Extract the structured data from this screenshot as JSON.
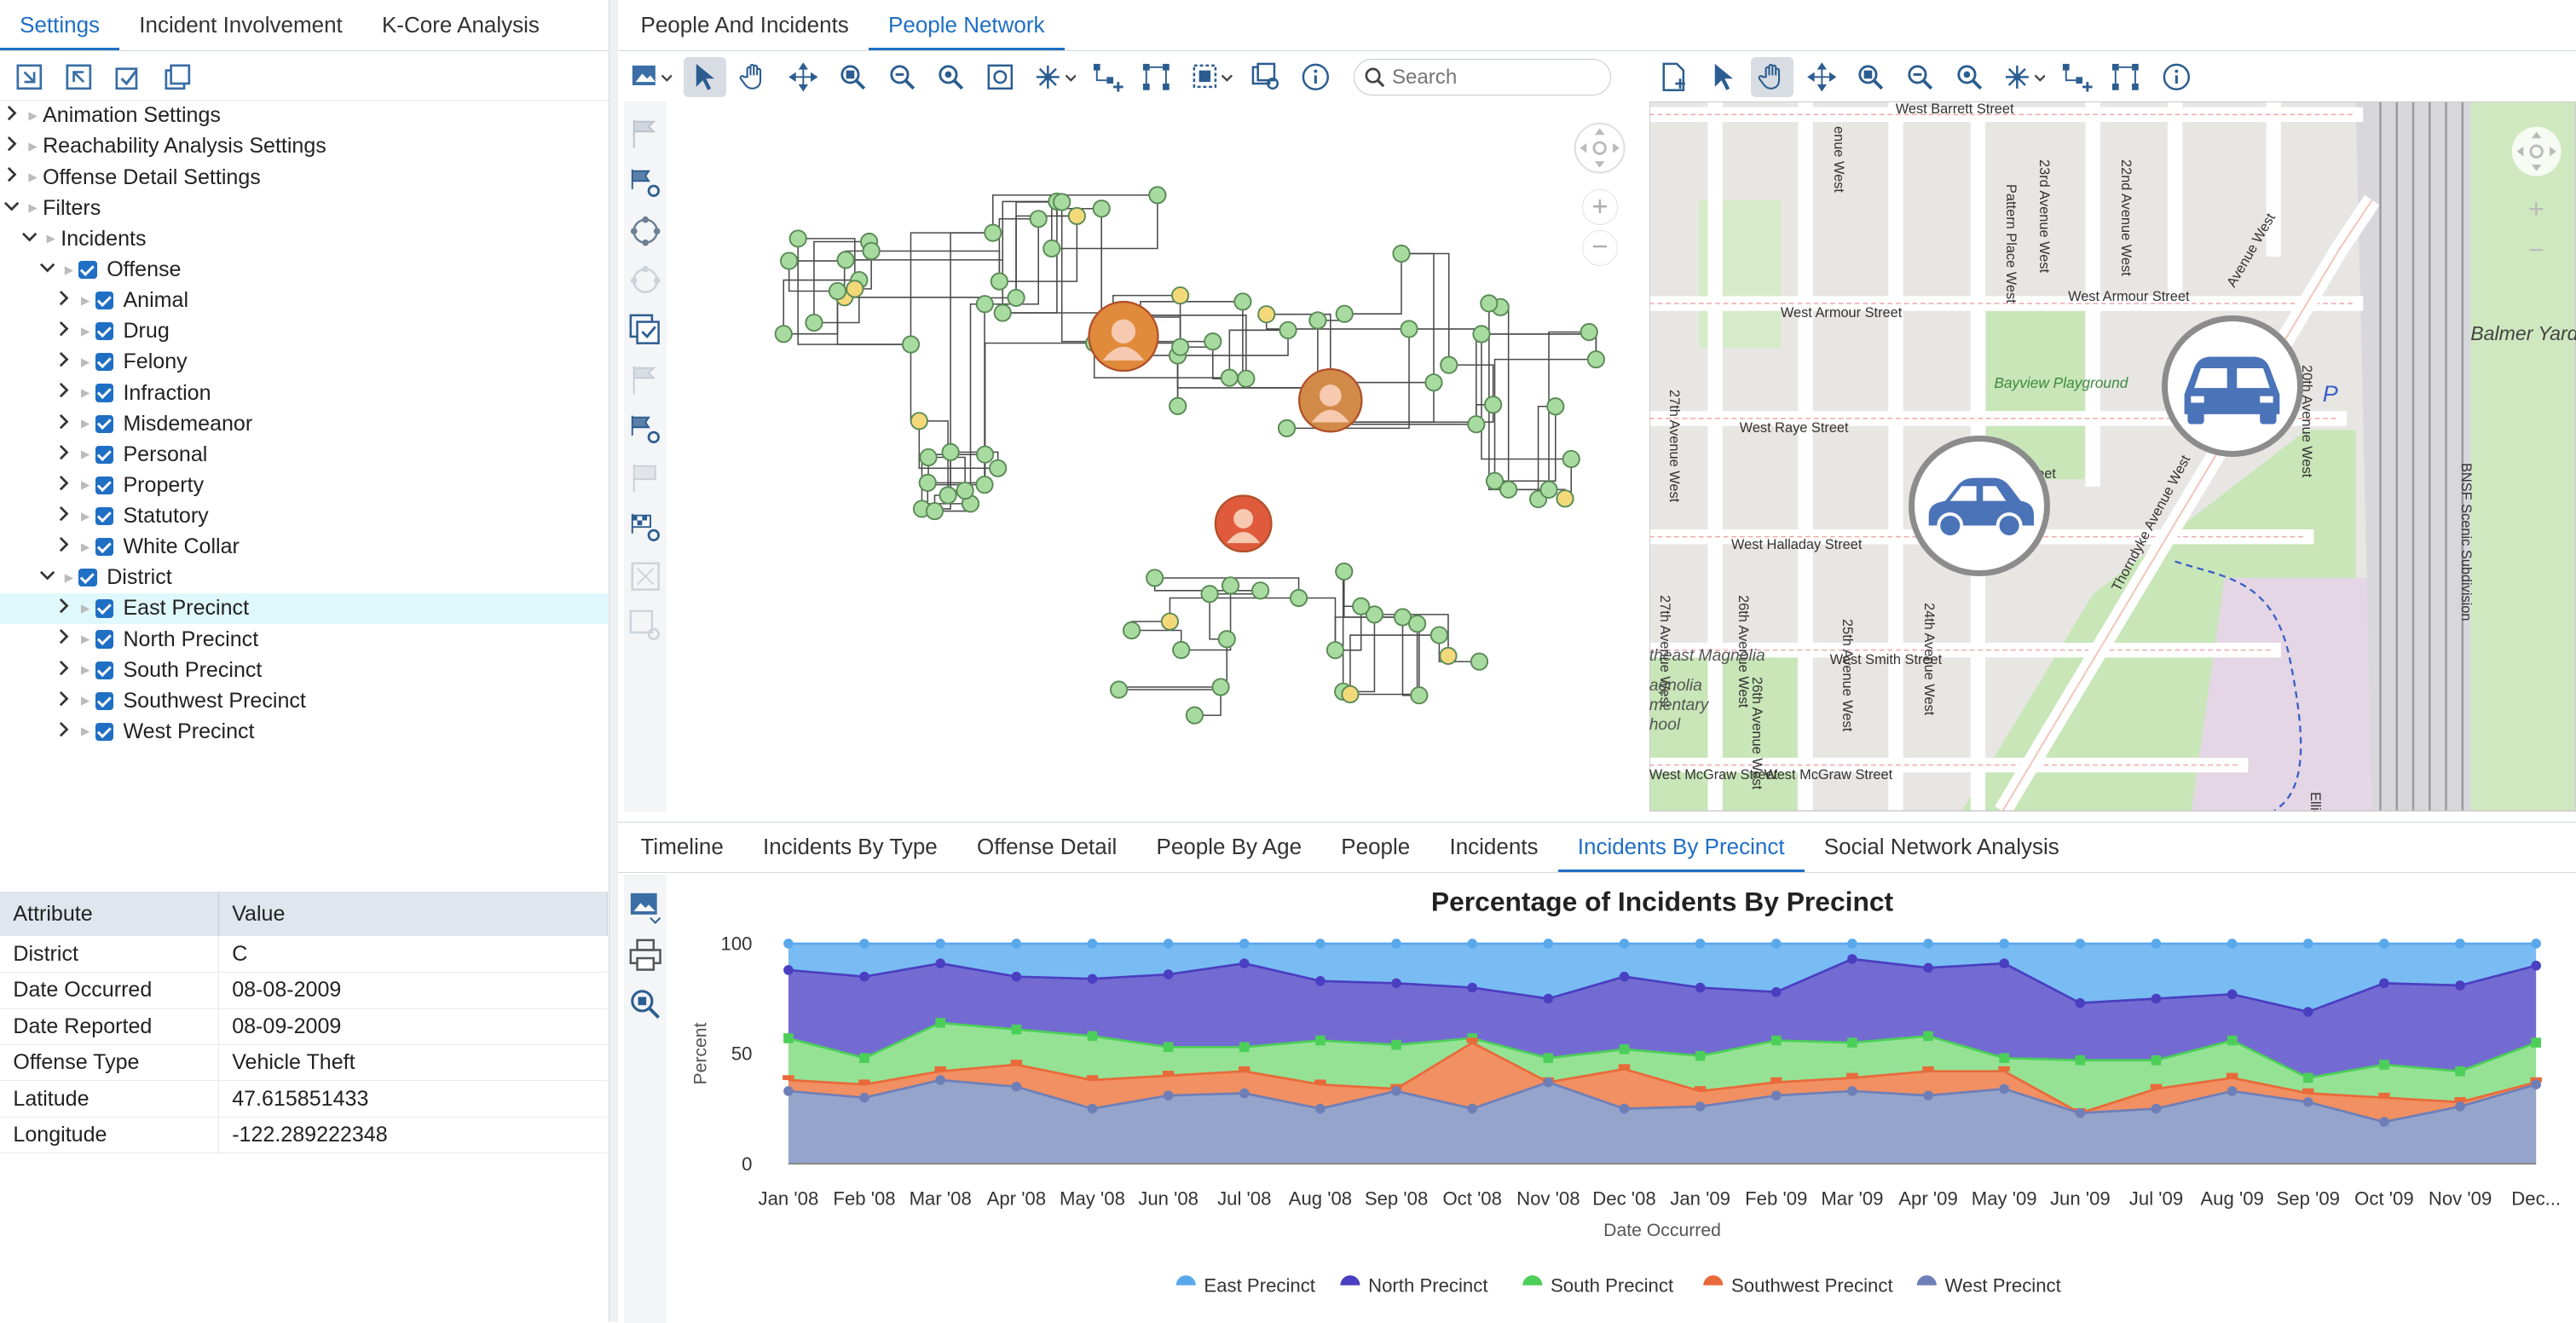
{
  "left_tabs": [
    "Settings",
    "Incident Involvement",
    "K-Core Analysis"
  ],
  "tree": [
    {
      "label": "Animation Settings",
      "level": 0,
      "chev": "›",
      "check": false
    },
    {
      "label": "Reachability Analysis Settings",
      "level": 0,
      "chev": "›",
      "check": false
    },
    {
      "label": "Offense Detail Settings",
      "level": 0,
      "chev": "›",
      "check": false
    },
    {
      "label": "Filters",
      "level": 0,
      "chev": "⌄",
      "check": false
    },
    {
      "label": "Incidents",
      "level": 1,
      "chev": "⌄",
      "check": false
    },
    {
      "label": "Offense",
      "level": 2,
      "chev": "⌄",
      "check": true
    },
    {
      "label": "Animal",
      "level": 3,
      "chev": "›",
      "check": true
    },
    {
      "label": "Drug",
      "level": 3,
      "chev": "›",
      "check": true
    },
    {
      "label": "Felony",
      "level": 3,
      "chev": "›",
      "check": true
    },
    {
      "label": "Infraction",
      "level": 3,
      "chev": "›",
      "check": true
    },
    {
      "label": "Misdemeanor",
      "level": 3,
      "chev": "›",
      "check": true
    },
    {
      "label": "Personal",
      "level": 3,
      "chev": "›",
      "check": true
    },
    {
      "label": "Property",
      "level": 3,
      "chev": "›",
      "check": true
    },
    {
      "label": "Statutory",
      "level": 3,
      "chev": "›",
      "check": true
    },
    {
      "label": "White Collar",
      "level": 3,
      "chev": "›",
      "check": true
    },
    {
      "label": "District",
      "level": 2,
      "chev": "⌄",
      "check": true
    },
    {
      "label": "East Precinct",
      "level": 3,
      "chev": "›",
      "check": true,
      "highlight": true
    },
    {
      "label": "North Precinct",
      "level": 3,
      "chev": "›",
      "check": true
    },
    {
      "label": "South Precinct",
      "level": 3,
      "chev": "›",
      "check": true
    },
    {
      "label": "Southwest Precinct",
      "level": 3,
      "chev": "›",
      "check": true
    },
    {
      "label": "West Precinct",
      "level": 3,
      "chev": "›",
      "check": true
    }
  ],
  "attributes": {
    "headers": [
      "Attribute",
      "Value"
    ],
    "rows": [
      [
        "District",
        "C"
      ],
      [
        "Date Occurred",
        "08-08-2009"
      ],
      [
        "Date Reported",
        "08-09-2009"
      ],
      [
        "Offense Type",
        "Vehicle Theft"
      ],
      [
        "Latitude",
        "47.615851433"
      ],
      [
        "Longitude",
        "-122.289222348"
      ]
    ]
  },
  "top_tabs": [
    "People And Incidents",
    "People Network"
  ],
  "search": {
    "placeholder": "Search"
  },
  "map": {
    "streets": [
      "West Barrett Street",
      "West Armour Street",
      "West Armour Street",
      "West Raye Street",
      "West Halladay Street",
      "West Smith Street",
      "West McGraw Street",
      "West McGraw Street",
      "Street",
      "27th Avenue West",
      "26th Avenue West",
      "25th Avenue West",
      "24th Avenue West",
      "23rd Avenue West",
      "22nd Avenue West",
      "Pattern Place West",
      "Thorndyke Avenue West",
      "20th Avenue West",
      "Elliott Bay",
      "BNSF Scenic Subdivision",
      "Avenue West",
      "enue West",
      "27th Avenue West",
      "26th Avenue West"
    ],
    "places": [
      "Bayview Playground",
      "Balmer Yard",
      "theast Magnolia",
      "agnolia",
      "mentary",
      "hool",
      "P"
    ]
  },
  "bottom_tabs": [
    "Timeline",
    "Incidents By Type",
    "Offense Detail",
    "People By Age",
    "People",
    "Incidents",
    "Incidents By Precinct",
    "Social Network Analysis"
  ],
  "active_top_tab": 1,
  "active_bottom_tab": 6,
  "colors": {
    "accent": "#1f6fc5",
    "east": "#72b8f2",
    "north": "#6b63cf",
    "south": "#8fe08f",
    "southwest": "#f08a5a",
    "west": "#8f9fc8"
  },
  "chart_data": {
    "type": "area",
    "title": "Percentage of Incidents By Precinct",
    "xlabel": "Date Occurred",
    "ylabel": "Percent",
    "ylim": [
      0,
      100
    ],
    "yticks": [
      0,
      50,
      100
    ],
    "categories": [
      "Jan '08",
      "Feb '08",
      "Mar '08",
      "Apr '08",
      "May '08",
      "Jun '08",
      "Jul '08",
      "Aug '08",
      "Sep '08",
      "Oct '08",
      "Nov '08",
      "Dec '08",
      "Jan '09",
      "Feb '09",
      "Mar '09",
      "Apr '09",
      "May '09",
      "Jun '09",
      "Jul '09",
      "Aug '09",
      "Sep '09",
      "Oct '09",
      "Nov '09",
      "Dec..."
    ],
    "legend_position": "bottom",
    "series": [
      {
        "name": "East Precinct",
        "values": [
          100,
          100,
          100,
          100,
          100,
          100,
          100,
          100,
          100,
          100,
          100,
          100,
          100,
          100,
          100,
          100,
          100,
          100,
          100,
          100,
          100,
          100,
          100,
          100
        ]
      },
      {
        "name": "North Precinct",
        "values": [
          88,
          85,
          91,
          85,
          84,
          86,
          91,
          83,
          82,
          80,
          75,
          85,
          80,
          78,
          93,
          89,
          91,
          73,
          75,
          77,
          69,
          82,
          81,
          90
        ]
      },
      {
        "name": "South Precinct",
        "values": [
          57,
          48,
          64,
          61,
          58,
          53,
          53,
          56,
          54,
          57,
          48,
          52,
          49,
          56,
          55,
          58,
          48,
          47,
          47,
          56,
          39,
          45,
          42,
          55
        ]
      },
      {
        "name": "Southwest Precinct",
        "values": [
          38,
          36,
          42,
          45,
          38,
          40,
          42,
          36,
          34,
          55,
          37,
          43,
          33,
          37,
          39,
          42,
          42,
          23,
          34,
          39,
          32,
          30,
          28,
          37
        ]
      },
      {
        "name": "West Precinct",
        "values": [
          33,
          30,
          38,
          35,
          25,
          31,
          32,
          25,
          33,
          25,
          37,
          25,
          26,
          31,
          33,
          31,
          34,
          23,
          25,
          33,
          28,
          19,
          26,
          36
        ]
      }
    ]
  }
}
